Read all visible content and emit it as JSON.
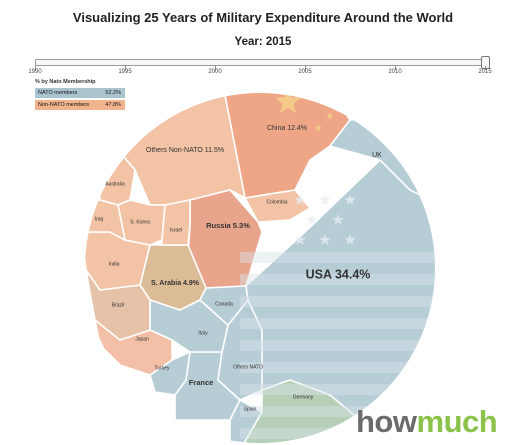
{
  "title": "Visualizing 25 Years of Military Expenditure Around the World",
  "year_label": "Year: 2015",
  "slider": {
    "min": 1990,
    "max": 2015,
    "value": 2015,
    "ticks": [
      "1990",
      "1995",
      "2000",
      "2005",
      "2010",
      "2015"
    ]
  },
  "legend": {
    "title": "% by Nato Membership",
    "items": [
      {
        "label": "NATO members",
        "pct": "52.2%",
        "color": "#a9c4cf"
      },
      {
        "label": "Non-NATO members",
        "pct": "47.8%",
        "color": "#f1b48f"
      }
    ]
  },
  "logo": {
    "part1": "how",
    "part2": "much",
    "color1": "#6b6b6b",
    "color2": "#8bc34a"
  },
  "colors": {
    "nato": "#b7cdd6",
    "non_nato": "#f3c3a5",
    "china": "#efa687",
    "russia": "#e9a58b",
    "germany": "#b8cfb7",
    "japan": "#f3bfa6",
    "s_arabia": "#dcbc96",
    "brazil": "#e5c2a8",
    "stroke": "#ffffff"
  },
  "chart_data": {
    "type": "voronoi-treemap",
    "year": 2015,
    "groups": [
      "NATO members",
      "Non-NATO members"
    ],
    "cells": [
      {
        "name": "USA",
        "label": "USA 34.4%",
        "group": "NATO members",
        "value": 34.4
      },
      {
        "name": "China",
        "label": "China 12.4%",
        "group": "Non-NATO members",
        "value": 12.4
      },
      {
        "name": "Others Non-NATO",
        "label": "Others Non-NATO 11.5%",
        "group": "Non-NATO members",
        "value": 11.5
      },
      {
        "name": "Russia",
        "label": "Russia 5.3%",
        "group": "Non-NATO members",
        "value": 5.3
      },
      {
        "name": "S. Arabia",
        "label": "S. Arabia 4.9%",
        "group": "Non-NATO members",
        "value": 4.9
      },
      {
        "name": "UK",
        "label": "UK",
        "group": "NATO members"
      },
      {
        "name": "France",
        "label": "France",
        "group": "NATO members"
      },
      {
        "name": "Germany",
        "label": "Germany",
        "group": "NATO members"
      },
      {
        "name": "Others NATO",
        "label": "Others NATO",
        "group": "NATO members"
      },
      {
        "name": "Italy",
        "label": "Italy",
        "group": "NATO members"
      },
      {
        "name": "Canada",
        "label": "Canada",
        "group": "NATO members"
      },
      {
        "name": "Spain",
        "label": "Spain",
        "group": "NATO members"
      },
      {
        "name": "Turkey",
        "label": "Turkey",
        "group": "NATO members"
      },
      {
        "name": "Japan",
        "label": "Japan",
        "group": "Non-NATO members"
      },
      {
        "name": "Brazil",
        "label": "Brazil",
        "group": "Non-NATO members"
      },
      {
        "name": "India",
        "label": "India",
        "group": "Non-NATO members"
      },
      {
        "name": "Australia",
        "label": "Australia",
        "group": "Non-NATO members"
      },
      {
        "name": "S. Korea",
        "label": "S. Korea",
        "group": "Non-NATO members"
      },
      {
        "name": "Israel",
        "label": "Israel",
        "group": "Non-NATO members"
      },
      {
        "name": "Iraq",
        "label": "Iraq",
        "group": "Non-NATO members"
      },
      {
        "name": "Colombia",
        "label": "Colombia",
        "group": "Non-NATO members"
      }
    ]
  }
}
